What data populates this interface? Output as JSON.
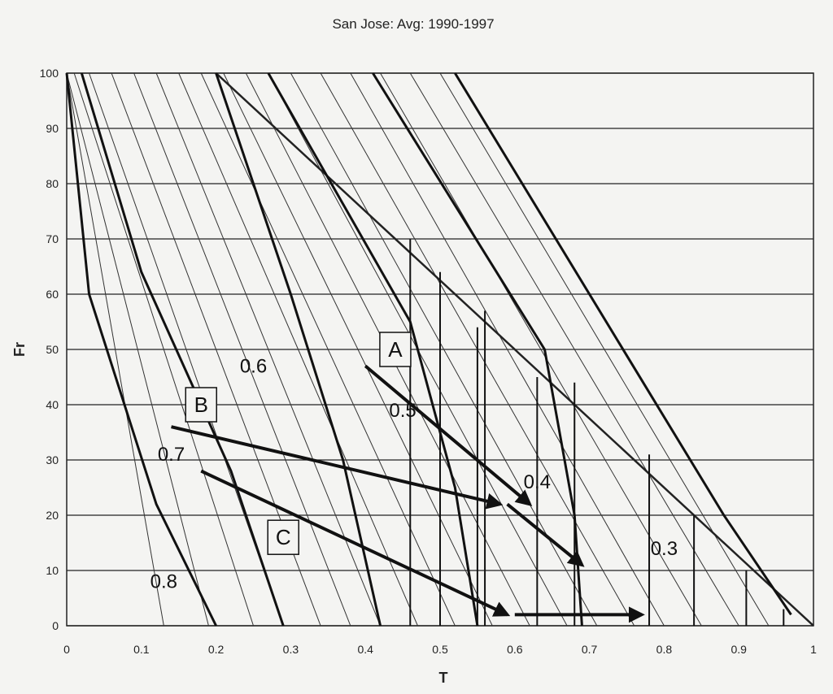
{
  "chart_data": {
    "type": "line",
    "title": "San Jose: Avg: 1990-1997",
    "xlabel": "T",
    "ylabel": "Fr",
    "xlim": [
      0,
      1
    ],
    "ylim": [
      0,
      100
    ],
    "xticks": [
      "0",
      "0.1",
      "0.2",
      "0.3",
      "0.4",
      "0.5",
      "0.6",
      "0.7",
      "0.8",
      "0.9",
      "1"
    ],
    "yticks": [
      "0",
      "10",
      "20",
      "30",
      "40",
      "50",
      "60",
      "70",
      "80",
      "90",
      "100"
    ],
    "grid": "horizontal",
    "boundary_line": {
      "x": [
        0.2,
        1.0
      ],
      "y": [
        100,
        0
      ]
    },
    "guide_lines": [
      {
        "x": [
          0.0,
          0.13
        ],
        "y": [
          100,
          0
        ]
      },
      {
        "x": [
          0.0,
          0.19
        ],
        "y": [
          100,
          0
        ]
      },
      {
        "x": [
          0.01,
          0.25
        ],
        "y": [
          100,
          0
        ]
      },
      {
        "x": [
          0.03,
          0.29
        ],
        "y": [
          100,
          0
        ]
      },
      {
        "x": [
          0.06,
          0.34
        ],
        "y": [
          100,
          0
        ]
      },
      {
        "x": [
          0.09,
          0.38
        ],
        "y": [
          100,
          0
        ]
      },
      {
        "x": [
          0.12,
          0.42
        ],
        "y": [
          100,
          0
        ]
      },
      {
        "x": [
          0.15,
          0.47
        ],
        "y": [
          100,
          0
        ]
      },
      {
        "x": [
          0.18,
          0.52
        ],
        "y": [
          100,
          0
        ]
      },
      {
        "x": [
          0.21,
          0.57
        ],
        "y": [
          100,
          0
        ]
      },
      {
        "x": [
          0.24,
          0.62
        ],
        "y": [
          100,
          0
        ]
      },
      {
        "x": [
          0.27,
          0.67
        ],
        "y": [
          100,
          0
        ]
      },
      {
        "x": [
          0.3,
          0.71
        ],
        "y": [
          100,
          0
        ]
      },
      {
        "x": [
          0.34,
          0.76
        ],
        "y": [
          100,
          0
        ]
      },
      {
        "x": [
          0.38,
          0.8
        ],
        "y": [
          100,
          0
        ]
      },
      {
        "x": [
          0.42,
          0.85
        ],
        "y": [
          100,
          0
        ]
      },
      {
        "x": [
          0.46,
          0.9
        ],
        "y": [
          100,
          0
        ]
      },
      {
        "x": [
          0.5,
          0.94
        ],
        "y": [
          100,
          0
        ]
      }
    ],
    "iso_curves": [
      {
        "name": "0.3",
        "x": [
          0.52,
          0.88,
          0.97
        ],
        "y": [
          100,
          20,
          2
        ]
      },
      {
        "name": "0.4",
        "x": [
          0.41,
          0.64,
          0.68,
          0.69
        ],
        "y": [
          100,
          50,
          20,
          0
        ]
      },
      {
        "name": "0.5",
        "x": [
          0.27,
          0.46,
          0.52,
          0.55
        ],
        "y": [
          100,
          55,
          25,
          0
        ]
      },
      {
        "name": "0.6",
        "x": [
          0.2,
          0.3,
          0.37,
          0.42
        ],
        "y": [
          100,
          60,
          30,
          0
        ]
      },
      {
        "name": "0.7",
        "x": [
          0.02,
          0.1,
          0.22,
          0.29
        ],
        "y": [
          100,
          64,
          28,
          0
        ]
      },
      {
        "name": "0.8",
        "x": [
          0.0,
          0.03,
          0.12,
          0.2
        ],
        "y": [
          100,
          60,
          22,
          0
        ]
      }
    ],
    "series_markers": [
      {
        "x": [
          0.46,
          0.5,
          0.56,
          0.63
        ],
        "y": [
          70,
          64,
          57,
          45
        ]
      },
      {
        "x": [
          0.55,
          0.68,
          0.78,
          0.84,
          0.91,
          0.96
        ],
        "y": [
          54,
          44,
          31,
          20,
          10,
          3
        ]
      }
    ],
    "arrows": [
      {
        "x": [
          0.14,
          0.58
        ],
        "y": [
          36,
          22
        ]
      },
      {
        "x": [
          0.4,
          0.62
        ],
        "y": [
          47,
          22
        ]
      },
      {
        "x": [
          0.59,
          0.69
        ],
        "y": [
          22,
          11
        ]
      },
      {
        "x": [
          0.18,
          0.59
        ],
        "y": [
          28,
          2
        ]
      },
      {
        "x": [
          0.6,
          0.77
        ],
        "y": [
          2,
          2
        ]
      }
    ],
    "labels": [
      {
        "text": "A",
        "x": 0.44,
        "y": 50,
        "boxed": true
      },
      {
        "text": "B",
        "x": 0.18,
        "y": 40,
        "boxed": true
      },
      {
        "text": "C",
        "x": 0.29,
        "y": 16,
        "boxed": true
      },
      {
        "text": "0.6",
        "x": 0.25,
        "y": 47,
        "boxed": false
      },
      {
        "text": "0.5",
        "x": 0.45,
        "y": 39,
        "boxed": false
      },
      {
        "text": "0.4",
        "x": 0.63,
        "y": 26,
        "boxed": false
      },
      {
        "text": "0.3",
        "x": 0.8,
        "y": 14,
        "boxed": false
      },
      {
        "text": "0.7",
        "x": 0.14,
        "y": 31,
        "boxed": false
      },
      {
        "text": "0.8",
        "x": 0.13,
        "y": 8,
        "boxed": false
      }
    ]
  }
}
